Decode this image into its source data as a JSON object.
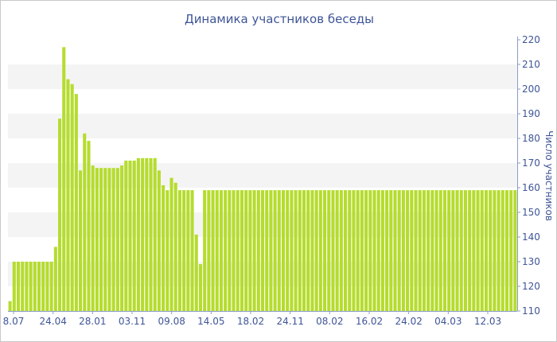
{
  "chart_data": {
    "type": "bar",
    "title": "Динамика участников беседы",
    "xlabel": "",
    "ylabel": "Число участников",
    "ylim": [
      110,
      220
    ],
    "y_ticks": [
      110,
      120,
      130,
      140,
      150,
      160,
      170,
      180,
      190,
      200,
      210,
      220
    ],
    "y_axis_side": "right",
    "x_tick_labels": [
      "8.07",
      "24.04",
      "28.01",
      "03.11",
      "09.08",
      "14.05",
      "18.02",
      "24.11",
      "08.02",
      "16.02",
      "24.02",
      "04.03",
      "12.03"
    ],
    "bar_color": "#b5dc2e",
    "band_color": "#f4f4f4",
    "text_color": "#3e5597",
    "series": [
      {
        "values": [
          114,
          130,
          130,
          130,
          130,
          130,
          130,
          130,
          130,
          130,
          130,
          136,
          188,
          217,
          204,
          202,
          198,
          167,
          182,
          179,
          169,
          168,
          168,
          168,
          168,
          168,
          168,
          169,
          171,
          171,
          171,
          172,
          172,
          172,
          172,
          172,
          167,
          161,
          159,
          164,
          162,
          159,
          159,
          159,
          159,
          141,
          129,
          159,
          159,
          159,
          159,
          159,
          159,
          159,
          159,
          159,
          159,
          159,
          159,
          159,
          159,
          159,
          159,
          159,
          159,
          159,
          159,
          159,
          159,
          159,
          159,
          159,
          159,
          159,
          159,
          159,
          159,
          159,
          159,
          159,
          159,
          159,
          159,
          159,
          159,
          159,
          159,
          159,
          159,
          159,
          159,
          159,
          159,
          159,
          159,
          159,
          159,
          159,
          159,
          159,
          159,
          159,
          159,
          159,
          159,
          159,
          159,
          159,
          159,
          159,
          159,
          159,
          159,
          159,
          159,
          159,
          159,
          159,
          159,
          159,
          159,
          159,
          159
        ]
      }
    ]
  }
}
